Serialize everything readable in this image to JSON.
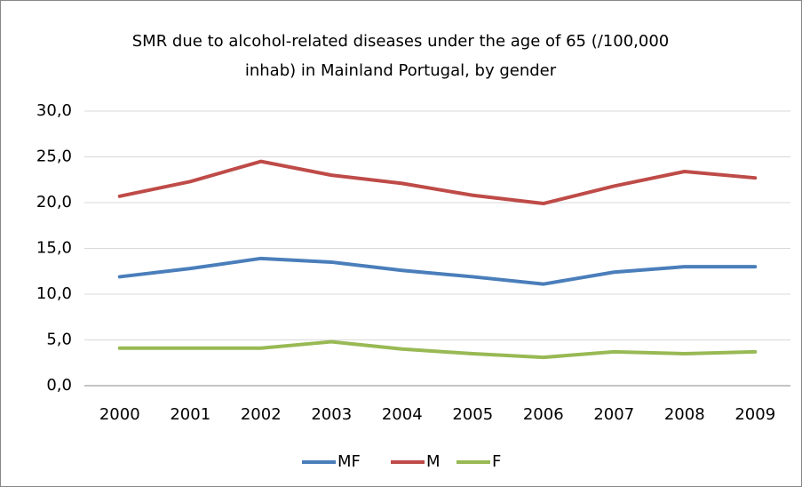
{
  "chart_data": {
    "type": "line",
    "title": [
      "SMR due to alcohol-related diseases under the age of 65 (/100,000",
      "inhab) in Mainland Portugal, by gender"
    ],
    "categories": [
      "2000",
      "2001",
      "2002",
      "2003",
      "2004",
      "2005",
      "2006",
      "2007",
      "2008",
      "2009"
    ],
    "series": [
      {
        "name": "MF",
        "color": "#4a7ebb",
        "values": [
          11.9,
          12.8,
          13.9,
          13.5,
          12.6,
          11.9,
          11.1,
          12.4,
          13.0,
          13.0
        ]
      },
      {
        "name": "M",
        "color": "#be4b48",
        "values": [
          20.7,
          22.3,
          24.5,
          23.0,
          22.1,
          20.8,
          19.9,
          21.8,
          23.4,
          22.7
        ]
      },
      {
        "name": "F",
        "color": "#98b954",
        "values": [
          4.1,
          4.1,
          4.1,
          4.8,
          4.0,
          3.5,
          3.1,
          3.7,
          3.5,
          3.7
        ]
      }
    ],
    "ylim": [
      0,
      30
    ],
    "yticks": [
      {
        "value": 0,
        "label": "0,0"
      },
      {
        "value": 5,
        "label": "5,0"
      },
      {
        "value": 10,
        "label": "10,0"
      },
      {
        "value": 15,
        "label": "15,0"
      },
      {
        "value": 20,
        "label": "20,0"
      },
      {
        "value": 25,
        "label": "25,0"
      },
      {
        "value": 30,
        "label": "30,0"
      }
    ],
    "grid": true,
    "legend": "bottom"
  }
}
